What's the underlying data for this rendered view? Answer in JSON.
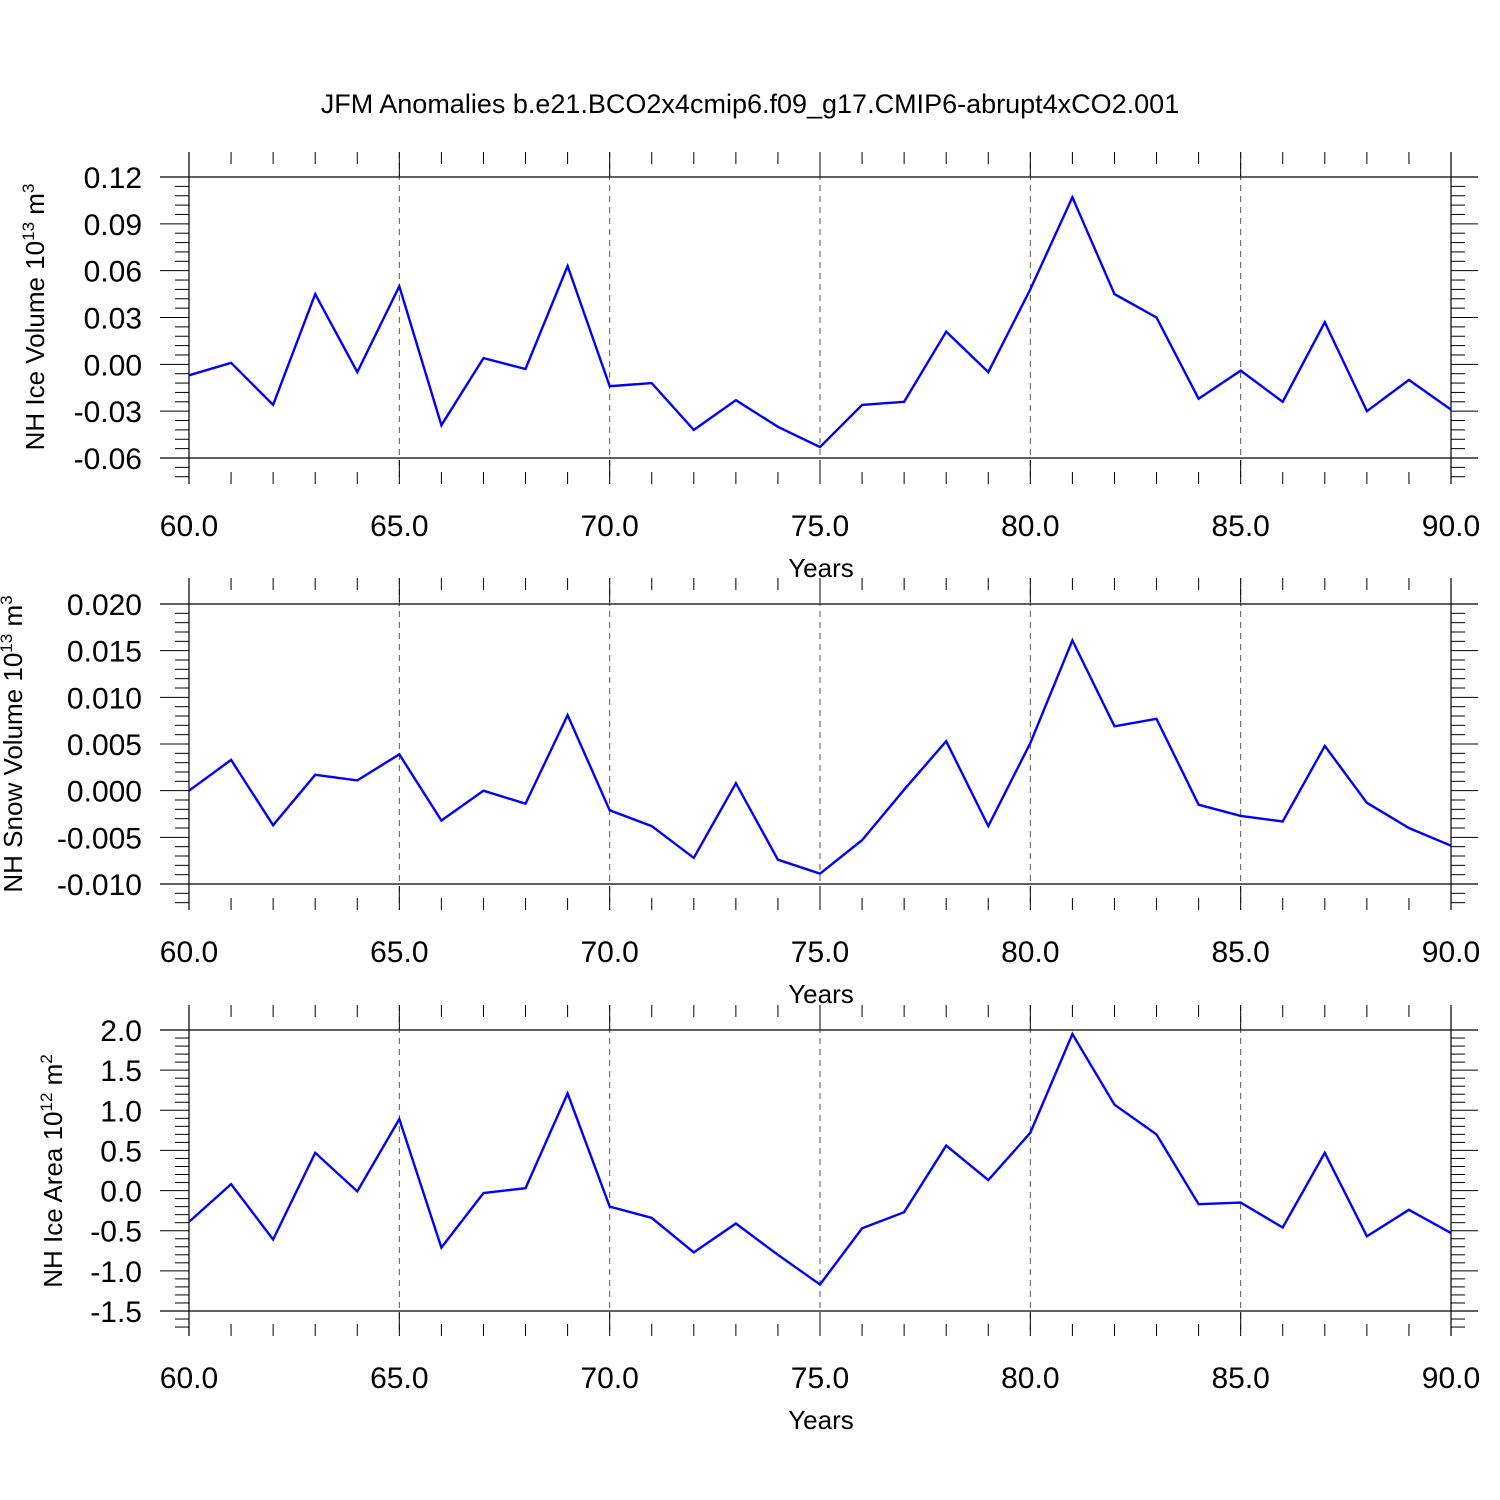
{
  "figure": {
    "title": "JFM Anomalies b.e21.BCO2x4cmip6.f09_g17.CMIP6-abrupt4xCO2.001"
  },
  "chart_data": [
    {
      "type": "line",
      "title": "JFM Anomalies b.e21.BCO2x4cmip6.f09_g17.CMIP6-abrupt4xCO2.001",
      "xlabel": "Years",
      "ylabel": "NH Ice Volume 10",
      "ylabel_sup": "13",
      "ylabel_unit": "m",
      "ylabel_unit_sup": "3",
      "xlim": [
        60,
        90
      ],
      "ylim": [
        -0.06,
        0.12
      ],
      "xticks": [
        "60.0",
        "65.0",
        "70.0",
        "75.0",
        "80.0",
        "85.0",
        "90.0"
      ],
      "yticks": [
        "-0.06",
        "-0.03",
        "0.00",
        "0.03",
        "0.06",
        "0.09",
        "0.12"
      ],
      "grid": "x-major-dashed",
      "line_color": "#0000ff",
      "x": [
        60,
        61,
        62,
        63,
        64,
        65,
        66,
        67,
        68,
        69,
        70,
        71,
        72,
        73,
        74,
        75,
        76,
        77,
        78,
        79,
        80,
        81,
        82,
        83,
        84,
        85,
        86,
        87,
        88,
        89,
        90
      ],
      "series": [
        {
          "values": [
            -0.007,
            0.001,
            -0.026,
            0.045,
            -0.005,
            0.05,
            -0.039,
            0.004,
            -0.003,
            0.063,
            -0.014,
            -0.012,
            -0.042,
            -0.023,
            -0.04,
            -0.053,
            -0.026,
            -0.024,
            0.021,
            -0.005,
            0.048,
            0.107,
            0.045,
            0.03,
            -0.022,
            -0.004,
            -0.024,
            0.027,
            -0.03,
            -0.01,
            -0.029
          ]
        }
      ]
    },
    {
      "type": "line",
      "xlabel": "Years",
      "ylabel": "NH Snow Volume 10",
      "ylabel_sup": "13",
      "ylabel_unit": "m",
      "ylabel_unit_sup": "3",
      "xlim": [
        60,
        90
      ],
      "ylim": [
        -0.01,
        0.02
      ],
      "xticks": [
        "60.0",
        "65.0",
        "70.0",
        "75.0",
        "80.0",
        "85.0",
        "90.0"
      ],
      "yticks": [
        "-0.010",
        "-0.005",
        "0.000",
        "0.005",
        "0.010",
        "0.015",
        "0.020"
      ],
      "grid": "x-major-dashed",
      "line_color": "#0000ff",
      "x": [
        60,
        61,
        62,
        63,
        64,
        65,
        66,
        67,
        68,
        69,
        70,
        71,
        72,
        73,
        74,
        75,
        76,
        77,
        78,
        79,
        80,
        81,
        82,
        83,
        84,
        85,
        86,
        87,
        88,
        89,
        90
      ],
      "series": [
        {
          "values": [
            0.0,
            0.0033,
            -0.0037,
            0.0017,
            0.0011,
            0.0039,
            -0.0032,
            0.0,
            -0.0014,
            0.0081,
            -0.0021,
            -0.0038,
            -0.0072,
            0.0008,
            -0.0074,
            -0.0089,
            -0.0053,
            0.0001,
            0.0053,
            -0.0038,
            0.0051,
            0.0161,
            0.0069,
            0.0077,
            -0.0015,
            -0.0027,
            -0.0033,
            0.0048,
            -0.0013,
            -0.004,
            -0.0059
          ]
        }
      ]
    },
    {
      "type": "line",
      "xlabel": "Years",
      "ylabel": "NH Ice Area 10",
      "ylabel_sup": "12",
      "ylabel_unit": "m",
      "ylabel_unit_sup": "2",
      "xlim": [
        60,
        90
      ],
      "ylim": [
        -1.5,
        2.0
      ],
      "xticks": [
        "60.0",
        "65.0",
        "70.0",
        "75.0",
        "80.0",
        "85.0",
        "90.0"
      ],
      "yticks": [
        "-1.5",
        "-1.0",
        "-0.5",
        "0.0",
        "0.5",
        "1.0",
        "1.5",
        "2.0"
      ],
      "grid": "x-major-dashed",
      "line_color": "#0000ff",
      "x": [
        60,
        61,
        62,
        63,
        64,
        65,
        66,
        67,
        68,
        69,
        70,
        71,
        72,
        73,
        74,
        75,
        76,
        77,
        78,
        79,
        80,
        81,
        82,
        83,
        84,
        85,
        86,
        87,
        88,
        89,
        90
      ],
      "series": [
        {
          "values": [
            -0.39,
            0.08,
            -0.61,
            0.47,
            -0.01,
            0.89,
            -0.71,
            -0.03,
            0.03,
            1.21,
            -0.2,
            -0.34,
            -0.77,
            -0.41,
            -0.8,
            -1.17,
            -0.47,
            -0.27,
            0.56,
            0.13,
            0.72,
            1.95,
            1.07,
            0.7,
            -0.17,
            -0.15,
            -0.46,
            0.47,
            -0.57,
            -0.24,
            -0.53
          ]
        }
      ]
    }
  ]
}
